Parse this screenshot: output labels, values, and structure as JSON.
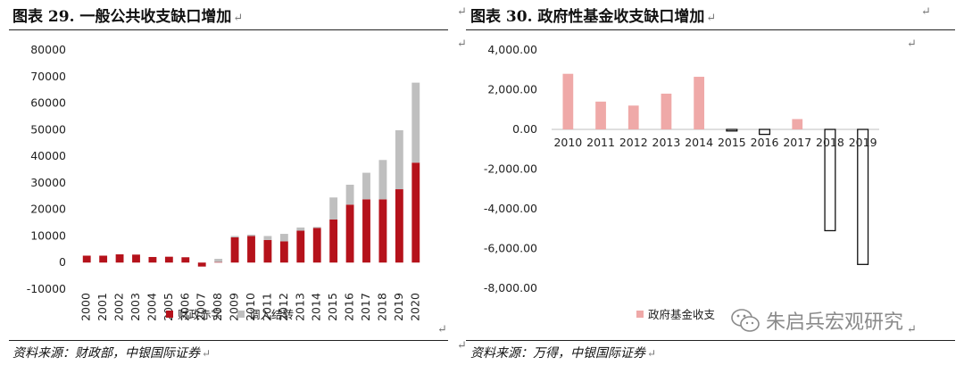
{
  "left": {
    "title": "图表 29. 一般公共收支缺口增加",
    "source": "资料来源：财政部，中银国际证券"
  },
  "right": {
    "title": "图表 30. 政府性基金收支缺口增加",
    "source": "资料来源：万得，中银国际证券"
  },
  "return_mark": "↵",
  "watermark": "朱启兵宏观研究",
  "colors": {
    "deficit": "#B5121B",
    "transfer": "#BFBFBF",
    "fund_pos": "#EFA9A8",
    "fund_neg_border": "#111111"
  },
  "chart_data": [
    {
      "type": "bar",
      "stacked": true,
      "categories": [
        "2000",
        "2001",
        "2002",
        "2003",
        "2004",
        "2005",
        "2006",
        "2007",
        "2008",
        "2009",
        "2010",
        "2011",
        "2012",
        "2013",
        "2014",
        "2015",
        "2016",
        "2017",
        "2018",
        "2019",
        "2020"
      ],
      "series": [
        {
          "name": "财政赤字",
          "values": [
            2600,
            2600,
            3100,
            3000,
            2100,
            2200,
            2000,
            -1500,
            200,
            9500,
            10000,
            8500,
            8000,
            12000,
            13000,
            16200,
            21800,
            23800,
            23800,
            27600,
            37600
          ]
        },
        {
          "name": "调入结转",
          "values": [
            0,
            0,
            0,
            0,
            0,
            0,
            0,
            0,
            1200,
            500,
            500,
            1500,
            2800,
            1200,
            400,
            8300,
            7500,
            10000,
            14800,
            22200,
            30100
          ]
        }
      ],
      "ylim": [
        -10000,
        80000
      ],
      "yticks": [
        -10000,
        0,
        10000,
        20000,
        30000,
        40000,
        50000,
        60000,
        70000,
        80000
      ],
      "legend_position": "bottom"
    },
    {
      "type": "bar",
      "categories": [
        "2010",
        "2011",
        "2012",
        "2013",
        "2014",
        "2015",
        "2016",
        "2017",
        "2018",
        "2019"
      ],
      "series": [
        {
          "name": "政府基金收支",
          "values": [
            2800,
            1400,
            1200,
            1800,
            2650,
            -80,
            -250,
            520,
            -5100,
            -6800
          ]
        }
      ],
      "ylim": [
        -8000,
        4000
      ],
      "yticks": [
        -8000,
        -6000,
        -4000,
        -2000,
        0,
        2000,
        4000
      ],
      "ytick_labels": [
        "-8,000.00",
        "-6,000.00",
        "-4,000.00",
        "-2,000.00",
        "0.00",
        "2,000.00",
        "4,000.00"
      ],
      "legend_position": "bottom"
    }
  ]
}
